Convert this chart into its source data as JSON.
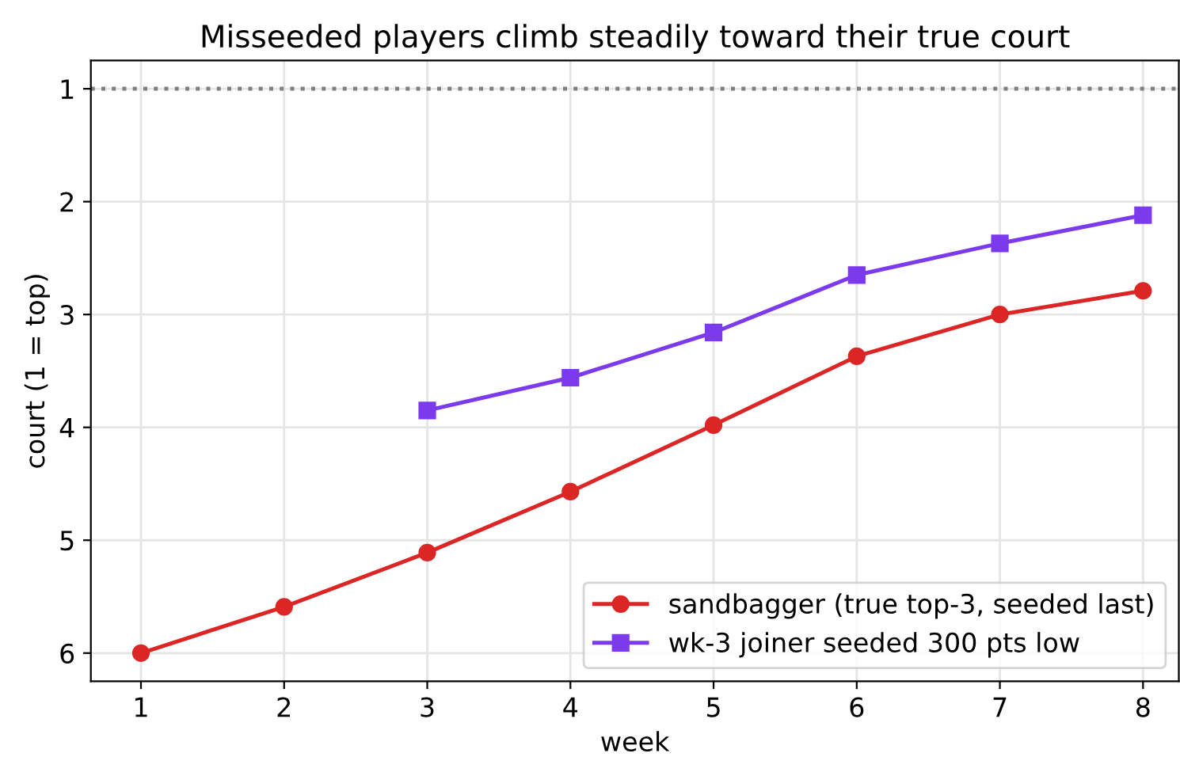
{
  "chart_data": {
    "type": "line",
    "title": "Misseeded players climb steadily toward their true court",
    "xlabel": "week",
    "ylabel": "court (1 = top)",
    "x": [
      1,
      2,
      3,
      4,
      5,
      6,
      7,
      8
    ],
    "series": [
      {
        "name": "sandbagger (true top-3, seeded last)",
        "color": "#dc2626",
        "marker": "circle",
        "values": [
          6.0,
          5.59,
          5.11,
          4.57,
          3.98,
          3.37,
          3.0,
          2.79
        ]
      },
      {
        "name": "wk-3 joiner seeded 300 pts low",
        "color": "#7c3aed",
        "marker": "square",
        "values": [
          null,
          null,
          3.85,
          3.56,
          3.16,
          2.65,
          2.37,
          2.12
        ]
      }
    ],
    "xlim": [
      0.65,
      8.25
    ],
    "xticks": [
      1,
      2,
      3,
      4,
      5,
      6,
      7,
      8
    ],
    "ylim": [
      6.25,
      0.75
    ],
    "yticks": [
      1,
      2,
      3,
      4,
      5,
      6
    ],
    "ref_lines": [
      {
        "axis": "y",
        "value": 1,
        "color": "#808080",
        "line_style": "dotted"
      }
    ],
    "grid": true,
    "legend": "bottom right",
    "line_style": "solid"
  }
}
